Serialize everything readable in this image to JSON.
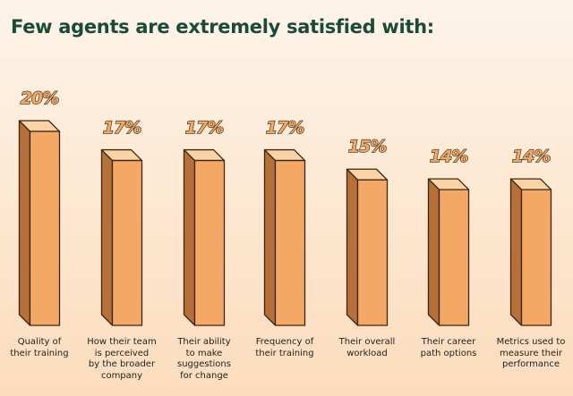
{
  "title": "Few agents are extremely satisfied with:",
  "colors": {
    "front": "#f4a866",
    "side": "#b8703a",
    "top": "#fcd3a4",
    "stroke": "#3a2615",
    "title": "#1c4a3a"
  },
  "chart_data": {
    "type": "bar",
    "title": "Few agents are extremely satisfied with:",
    "categories": [
      "Quality of their training",
      "How their team is perceived by the broader company",
      "Their ability to make suggestions for change",
      "Frequency of their training",
      "Their overall workload",
      "Their career path options",
      "Metrics used to measure their performance"
    ],
    "category_lines": [
      [
        "Quality of",
        "their training"
      ],
      [
        "How their team",
        "is perceived",
        "by the broader",
        "company"
      ],
      [
        "Their ability",
        "to make",
        "suggestions",
        "for change"
      ],
      [
        "Frequency of",
        "their training"
      ],
      [
        "Their overall",
        "workload"
      ],
      [
        "Their career",
        "path options"
      ],
      [
        "Metrics used to",
        "measure their",
        "performance"
      ]
    ],
    "values": [
      20,
      17,
      17,
      17,
      15,
      14,
      14
    ],
    "value_labels": [
      "20%",
      "17%",
      "17%",
      "17%",
      "15%",
      "14%",
      "14%"
    ],
    "unit": "%",
    "ylim": [
      0,
      20
    ],
    "xlabel": "",
    "ylabel": ""
  }
}
